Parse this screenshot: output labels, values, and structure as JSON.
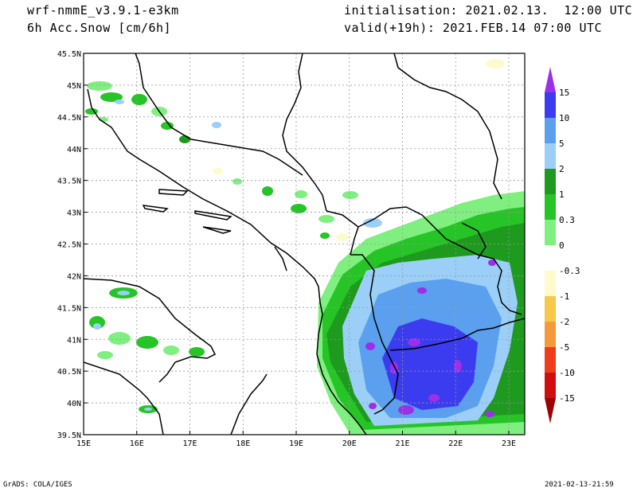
{
  "header": {
    "model": "wrf-nmmE_v3.9.1-e3km",
    "variable": "6h Acc.Snow [cm/6h]",
    "init": "initialisation: 2021.02.13.  12:00 UTC",
    "valid": "valid(+19h): 2021.FEB.14 07:00 UTC"
  },
  "footer": {
    "left": "GrADS: COLA/IGES",
    "right": "2021-02-13-21:59"
  },
  "map": {
    "lon_range": [
      15,
      23.3
    ],
    "lat_range": [
      39.5,
      45.5
    ],
    "lon_ticks": [
      "15E",
      "16E",
      "17E",
      "18E",
      "19E",
      "20E",
      "21E",
      "22E",
      "23E"
    ],
    "lat_ticks": [
      "39.5N",
      "40N",
      "40.5N",
      "41N",
      "41.5N",
      "42N",
      "42.5N",
      "43N",
      "43.5N",
      "44N",
      "44.5N",
      "45N",
      "45.5N"
    ]
  },
  "colorbar": {
    "labels": [
      "15",
      "10",
      "5",
      "2",
      "1",
      "0.3",
      "0",
      "-0.3",
      "-1",
      "-2",
      "-5",
      "-10",
      "-15"
    ],
    "colors": [
      "#9c2fe8",
      "#3b3bf0",
      "#5aa0ef",
      "#9ccff7",
      "#1e9a1e",
      "#26c426",
      "#7fef7f",
      "#ffffff",
      "#fdfbcc",
      "#f6c94a",
      "#f59a3b",
      "#f03c1c",
      "#d10e0e",
      "#9a0404"
    ]
  },
  "colors": {
    "frame": "#000000",
    "grid": "#9a9a9a",
    "coast": "#000000"
  }
}
